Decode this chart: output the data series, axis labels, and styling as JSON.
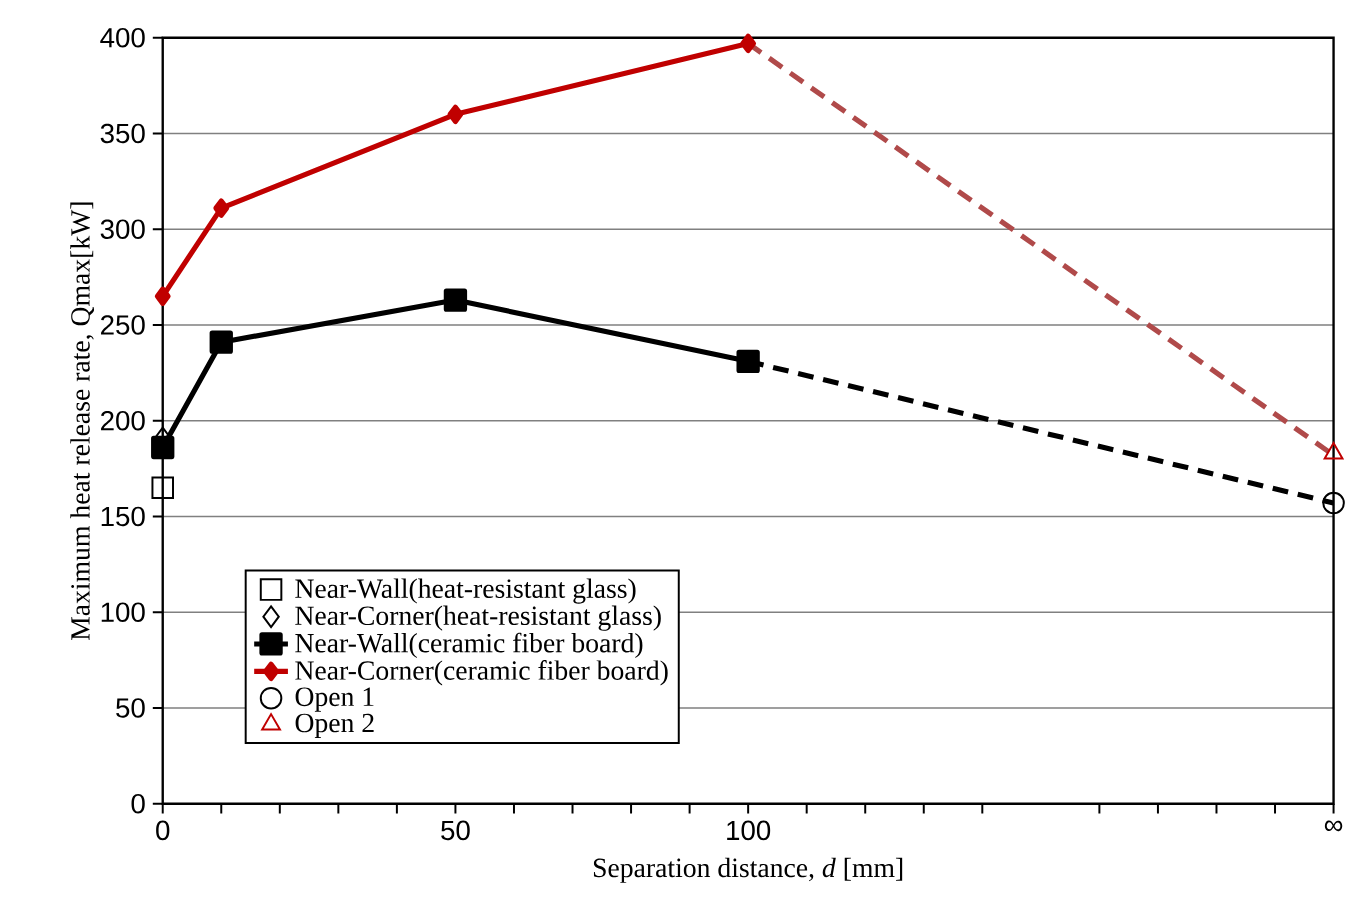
{
  "chart_data": {
    "type": "line",
    "xlabel": "Separation distance, *d* [mm]",
    "ylabel": "Maximum heat release rate, Qmax[kW]",
    "xlim": [
      0,
      200
    ],
    "ylim": [
      0,
      400
    ],
    "xticks": [
      0,
      {
        "value": 10,
        "label": null
      },
      {
        "value": 20,
        "label": null
      },
      {
        "value": 30,
        "label": null
      },
      {
        "value": 40,
        "label": null
      },
      50,
      {
        "value": 60,
        "label": null
      },
      {
        "value": 70,
        "label": null
      },
      {
        "value": 80,
        "label": null
      },
      {
        "value": 90,
        "label": null
      },
      100,
      {
        "value": 110,
        "label": null
      },
      {
        "value": 120,
        "label": null
      },
      {
        "value": 130,
        "label": null
      },
      {
        "value": 140,
        "label": null
      },
      {
        "value": 160,
        "label": null
      },
      {
        "value": 170,
        "label": null
      },
      {
        "value": 180,
        "label": null
      },
      {
        "value": 190,
        "label": null
      },
      {
        "value": 200,
        "label": "∞"
      }
    ],
    "yticks": [
      0,
      50,
      100,
      150,
      200,
      250,
      300,
      350,
      400
    ],
    "grid": "y",
    "legend": "bottom left",
    "series": [
      {
        "color": "#000000",
        "line_style": "dashed",
        "x": [
          100,
          200
        ],
        "values": [
          231,
          157
        ]
      },
      {
        "color": "#b04a4a",
        "line_style": "dashed",
        "x": [
          100,
          200
        ],
        "values": [
          397,
          182
        ]
      },
      {
        "name": "Near-Wall(heat-resistant glass)",
        "type": "scatter",
        "color": "#000000",
        "marker": "square",
        "x": [
          0
        ],
        "values": [
          165
        ]
      },
      {
        "name": "Near-Corner(heat-resistant glass)",
        "type": "scatter",
        "color": "#000000",
        "marker": "diamond",
        "x": [
          0
        ],
        "values": [
          191
        ]
      },
      {
        "name": "Near-Wall(ceramic fiber board)",
        "color": "#000000",
        "line_style": "solid",
        "marker": "square",
        "x": [
          0,
          10,
          50,
          100
        ],
        "values": [
          186,
          241,
          263,
          231
        ]
      },
      {
        "name": "Near-Corner(ceramic fiber board)",
        "color": "#c00000",
        "line_style": "solid",
        "marker": "diamond",
        "x": [
          0,
          10,
          50,
          100
        ],
        "values": [
          265,
          311,
          360,
          397
        ]
      },
      {
        "name": "Open 1",
        "type": "scatter",
        "color": "#000000",
        "marker": "circle",
        "x": [
          200
        ],
        "values": [
          157
        ]
      },
      {
        "name": "Open 2",
        "type": "scatter",
        "color": "#c00000",
        "marker": "triangle",
        "x": [
          200
        ],
        "values": [
          183
        ]
      }
    ]
  }
}
